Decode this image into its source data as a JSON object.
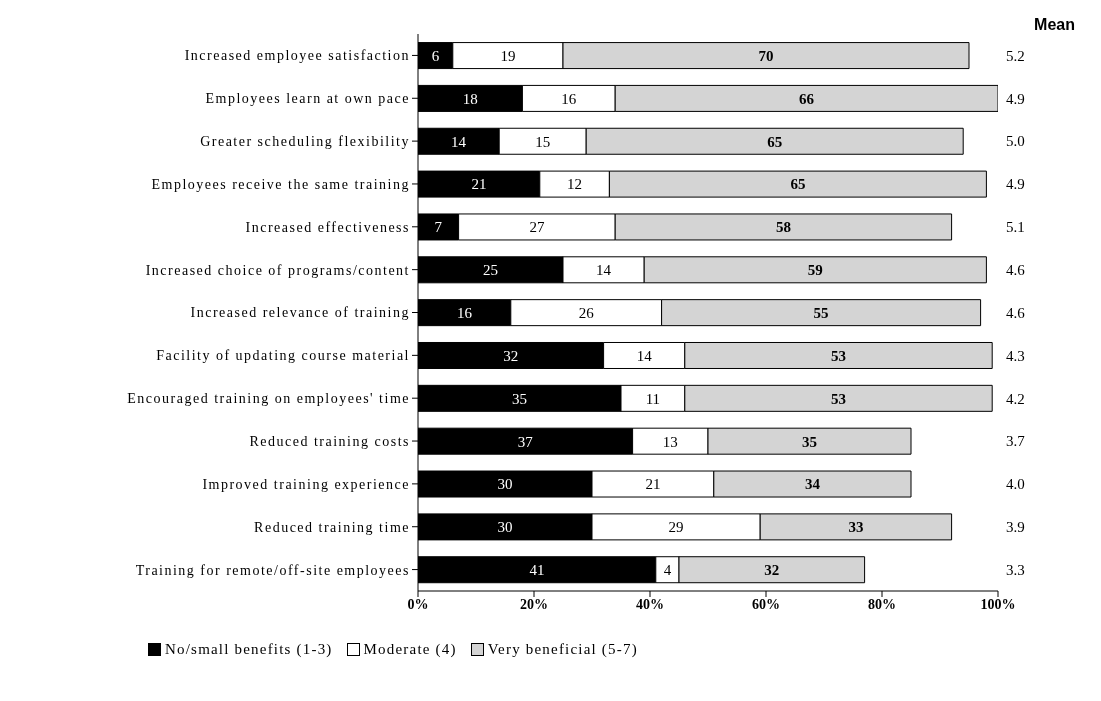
{
  "chart_data": {
    "type": "bar",
    "orientation": "horizontal",
    "stacked": true,
    "data_labels": true,
    "categories": [
      "Increased employee satisfaction",
      "Employees learn at own pace",
      "Greater scheduling flexibility",
      "Employees receive the same training",
      "Increased effectiveness",
      "Increased choice of programs/content",
      "Increased relevance of training",
      "Facility of updating course material",
      "Encouraged training on employees' time",
      "Reduced training costs",
      "Improved training experience",
      "Reduced training time",
      "Training for remote/off-site employees"
    ],
    "series": [
      {
        "name": "No/small benefits (1-3)",
        "color": "#000000",
        "values": [
          6,
          18,
          14,
          21,
          7,
          25,
          16,
          32,
          35,
          37,
          30,
          30,
          41
        ]
      },
      {
        "name": "Moderate (4)",
        "color": "#ffffff",
        "values": [
          19,
          16,
          15,
          12,
          27,
          14,
          26,
          14,
          11,
          13,
          21,
          29,
          4
        ]
      },
      {
        "name": "Very beneficial (5-7)",
        "color": "#d4d4d4",
        "values": [
          70,
          66,
          65,
          65,
          58,
          59,
          55,
          53,
          53,
          35,
          34,
          33,
          32
        ]
      }
    ],
    "xlim": [
      0,
      100
    ],
    "xticks": [
      {
        "value": 0,
        "label": "0%"
      },
      {
        "value": 20,
        "label": "20%"
      },
      {
        "value": 40,
        "label": "40%"
      },
      {
        "value": 60,
        "label": "60%"
      },
      {
        "value": 80,
        "label": "80%"
      },
      {
        "value": 100,
        "label": "100%"
      }
    ],
    "legend": "bottom left",
    "grid": false,
    "annotations": [
      "Mean",
      "5.2",
      "4.9",
      "5.0",
      "4.9",
      "5.1",
      "4.6",
      "4.6",
      "4.3",
      "4.2",
      "3.7",
      "4.0",
      "3.9",
      "3.3"
    ]
  }
}
